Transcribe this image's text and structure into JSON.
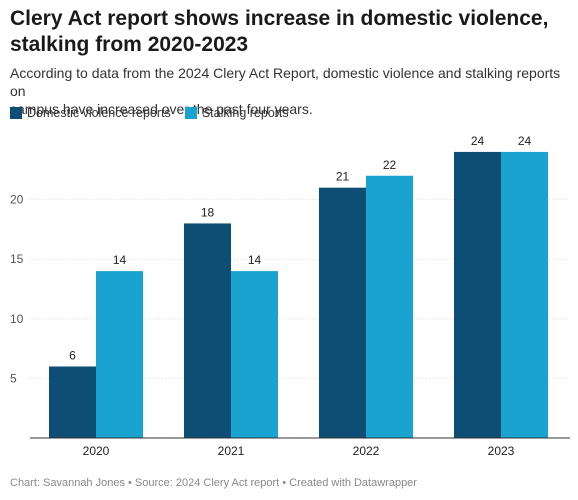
{
  "title_line1": "Clery Act report shows increase in domestic violence,",
  "title_line2": "stalking from 2020-2023",
  "subtitle_line1": "According to data from the 2024 Clery Act Report, domestic violence and stalking reports on",
  "subtitle_line2": "campus have increased over the past four years.",
  "footer": "Chart: Savannah Jones • Source: 2024 Clery Act report • Created with Datawrapper",
  "colors": {
    "domestic": "#0e4e74",
    "stalking": "#1aa2d0",
    "grid": "#dddddd",
    "axis": "#333333",
    "tick_text": "#555555",
    "label_text": "#222222"
  },
  "chart_data": {
    "type": "bar",
    "categories": [
      "2020",
      "2021",
      "2022",
      "2023"
    ],
    "series": [
      {
        "name": "Domestic violence reports",
        "values": [
          6,
          18,
          21,
          24
        ]
      },
      {
        "name": "Stalking reports",
        "values": [
          14,
          14,
          22,
          24
        ]
      }
    ],
    "ylim": [
      0,
      25
    ],
    "yticks": [
      "5",
      "10",
      "15",
      "20"
    ],
    "grid": true,
    "legend_placement": "top-left",
    "data_labels": true
  }
}
